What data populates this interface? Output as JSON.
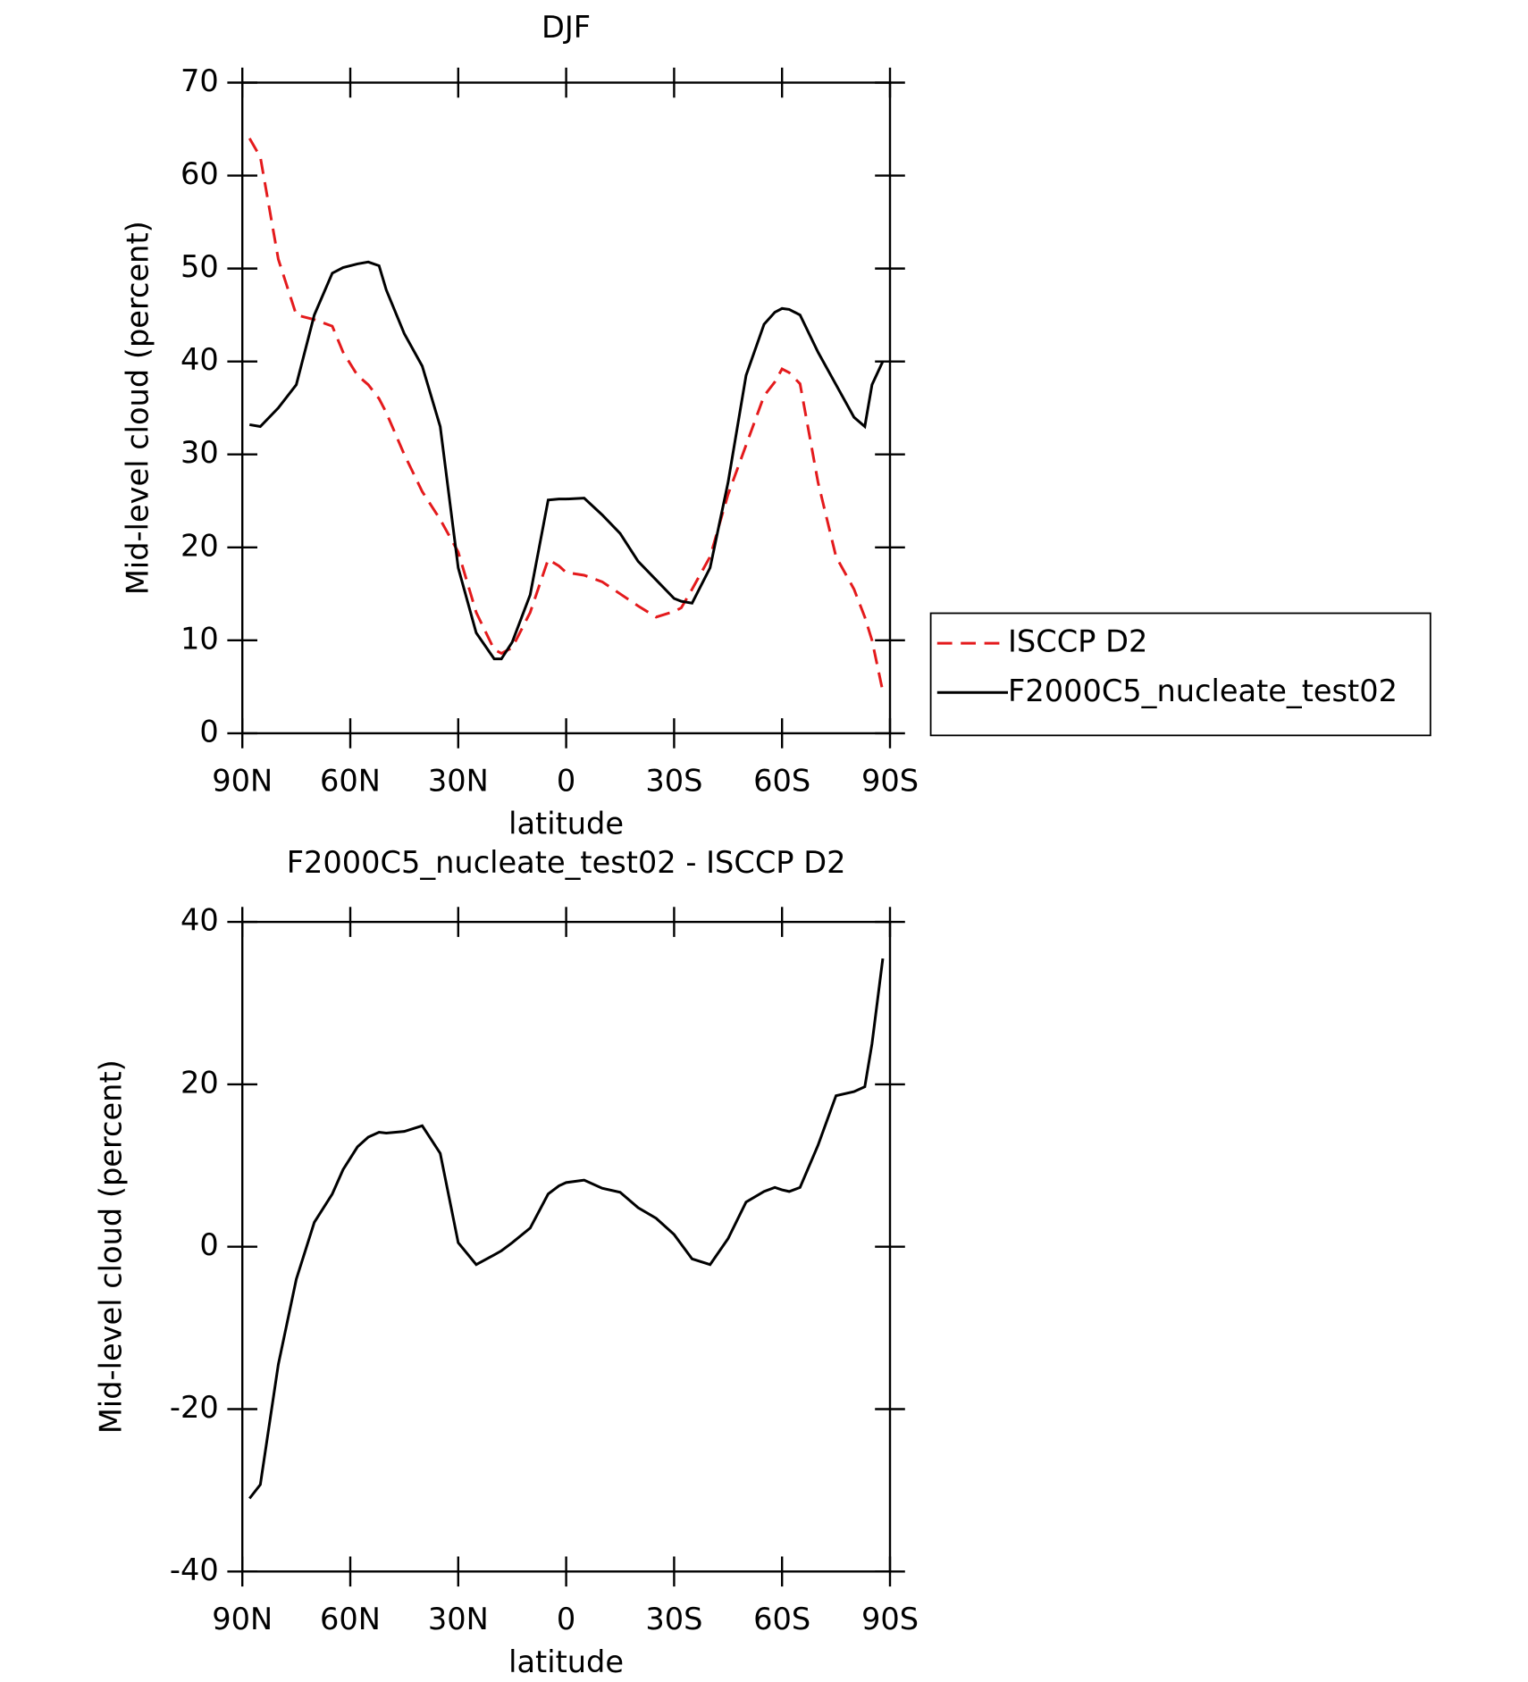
{
  "chart_data": [
    {
      "type": "line",
      "title": "DJF",
      "x_label": "latitude",
      "y_label": "Mid-level cloud (percent)",
      "x": [
        88,
        85,
        80,
        75,
        70,
        65,
        62,
        58,
        55,
        52,
        50,
        45,
        40,
        35,
        30,
        25,
        20,
        18,
        15,
        10,
        5,
        2,
        0,
        -5,
        -10,
        -15,
        -20,
        -25,
        -30,
        -32,
        -35,
        -40,
        -45,
        -50,
        -55,
        -58,
        -60,
        -62,
        -65,
        -70,
        -75,
        -80,
        -83,
        -85,
        -88
      ],
      "series": [
        {
          "name": "ISCCP D2",
          "color": "#e41a1c",
          "dash": "dashed",
          "values": [
            64,
            62,
            51,
            45,
            44.5,
            43.8,
            41,
            38.5,
            37.5,
            36,
            34.5,
            30,
            26,
            23,
            19.5,
            13,
            9,
            8.6,
            9.2,
            13,
            18.7,
            18,
            17.3,
            17,
            16.3,
            15,
            13.7,
            12.5,
            13.1,
            13.5,
            15.5,
            19,
            25.7,
            31,
            36.3,
            37.8,
            39.2,
            38.8,
            37.6,
            27,
            19,
            15.5,
            12.5,
            10,
            4.5
          ]
        },
        {
          "name": "F2000C5_nucleate_test02",
          "color": "#000000",
          "dash": "solid",
          "values": [
            33.2,
            33,
            35,
            37.5,
            45,
            49.5,
            50.1,
            50.5,
            50.7,
            50.3,
            47.7,
            43,
            39.5,
            33,
            17.8,
            10.8,
            8,
            8,
            9.8,
            14.9,
            25.1,
            25.2,
            25.2,
            25.3,
            23.5,
            21.5,
            18.5,
            16.5,
            14.5,
            14.2,
            14,
            17.8,
            27,
            38.5,
            44,
            45.3,
            45.7,
            45.6,
            45,
            41,
            37.5,
            34,
            33,
            37.5,
            40
          ]
        }
      ],
      "xlim": [
        90,
        -90
      ],
      "xticks": [
        {
          "value": 90,
          "label": "90N"
        },
        {
          "value": 60,
          "label": "60N"
        },
        {
          "value": 30,
          "label": "30N"
        },
        0,
        {
          "value": -30,
          "label": "30S"
        },
        {
          "value": -60,
          "label": "60S"
        },
        {
          "value": -90,
          "label": "90S"
        }
      ],
      "ylim": [
        0,
        70
      ],
      "yticks": [
        0,
        10,
        20,
        30,
        40,
        50,
        60,
        70
      ],
      "legend": "outside-right"
    },
    {
      "type": "line",
      "title": "F2000C5_nucleate_test02 - ISCCP D2",
      "x_label": "latitude",
      "y_label": "Mid-level cloud (percent)",
      "x": [
        88,
        85,
        80,
        75,
        70,
        65,
        62,
        58,
        55,
        52,
        50,
        45,
        40,
        35,
        30,
        25,
        20,
        18,
        15,
        10,
        5,
        2,
        0,
        -5,
        -10,
        -15,
        -20,
        -25,
        -30,
        -32,
        -35,
        -40,
        -45,
        -50,
        -55,
        -58,
        -60,
        -62,
        -65,
        -70,
        -75,
        -80,
        -83,
        -85,
        -88
      ],
      "values": [
        -31,
        -29.3,
        -14.5,
        -4,
        3,
        6.5,
        9.5,
        12.3,
        13.5,
        14.1,
        14,
        14.2,
        14.9,
        11.5,
        0.5,
        -2.2,
        -1,
        -0.5,
        0.5,
        2.3,
        6.5,
        7.5,
        7.9,
        8.2,
        7.2,
        6.7,
        4.8,
        3.5,
        1.5,
        0.3,
        -1.5,
        -2.2,
        1,
        5.5,
        6.8,
        7.3,
        7,
        6.8,
        7.3,
        12.5,
        18.6,
        19.1,
        19.7,
        25,
        35.5
      ],
      "color": "#000000",
      "xlim": [
        90,
        -90
      ],
      "xticks": [
        {
          "value": 90,
          "label": "90N"
        },
        {
          "value": 60,
          "label": "60N"
        },
        {
          "value": 30,
          "label": "30N"
        },
        0,
        {
          "value": -30,
          "label": "30S"
        },
        {
          "value": -60,
          "label": "60S"
        },
        {
          "value": -90,
          "label": "90S"
        }
      ],
      "ylim": [
        -40,
        40
      ],
      "yticks": [
        -40,
        -20,
        0,
        20,
        40
      ]
    }
  ]
}
